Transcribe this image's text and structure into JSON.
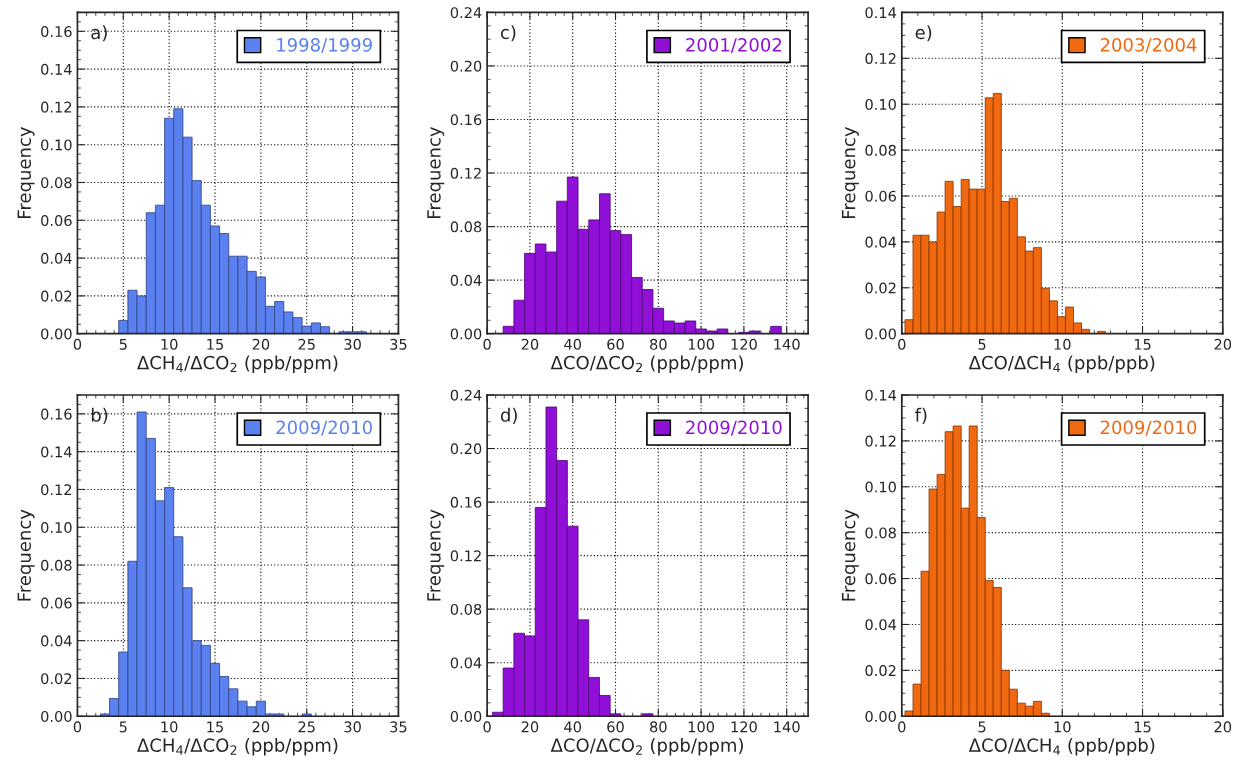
{
  "chart_data": [
    {
      "type": "histogram",
      "annotations": [
        "a)"
      ],
      "xlabel": "ΔCH$_{4}$/ΔCO$_{2}$ (ppb/ppm)",
      "ylabel": "Frequency",
      "grid": true,
      "legend": "top right",
      "bins": [
        4.5,
        5.5,
        6.5,
        7.5,
        8.5,
        9.5,
        10.5,
        11.5,
        12.5,
        13.5,
        14.5,
        15.5,
        16.5,
        17.5,
        18.5,
        19.5,
        20.5,
        21.5,
        22.5,
        23.5,
        24.5,
        25.5,
        26.5,
        27.5,
        28.5,
        29.5,
        30.5,
        31.5
      ],
      "series": [
        {
          "name": "1998/1999",
          "color": "#5b80f0",
          "values": [
            0.007,
            0.023,
            0.02,
            0.064,
            0.068,
            0.114,
            0.119,
            0.104,
            0.081,
            0.068,
            0.057,
            0.053,
            0.041,
            0.041,
            0.033,
            0.03,
            0.0145,
            0.017,
            0.0115,
            0.0085,
            0.004,
            0.0057,
            0.0037,
            0,
            0.001,
            0.001,
            0.001
          ]
        }
      ],
      "xlim": [
        0,
        35
      ],
      "xticks": [
        0,
        5,
        10,
        15,
        20,
        25,
        30,
        35
      ],
      "ylim": [
        0,
        0.17
      ],
      "yticks": [
        {
          "value": 0,
          "label": "0.00"
        },
        {
          "value": 0.02,
          "label": "0.02"
        },
        {
          "value": 0.04,
          "label": "0.04"
        },
        {
          "value": 0.06,
          "label": "0.06"
        },
        {
          "value": 0.08,
          "label": "0.08"
        },
        {
          "value": 0.1,
          "label": "0.10"
        },
        {
          "value": 0.12,
          "label": "0.12"
        },
        {
          "value": 0.14,
          "label": "0.14"
        },
        {
          "value": 0.16,
          "label": "0.16"
        }
      ]
    },
    {
      "type": "histogram",
      "annotations": [
        "c)"
      ],
      "xlabel": "ΔCO/ΔCO$_{2}$ (ppb/ppm)",
      "ylabel": "Frequency",
      "grid": true,
      "legend": "top right",
      "bins": [
        7.5,
        12.5,
        17.5,
        22.5,
        27.5,
        32.5,
        37.5,
        42.5,
        47.5,
        52.5,
        57.5,
        62.5,
        67.5,
        72.5,
        77.5,
        82.5,
        87.5,
        92.5,
        97.5,
        102.5,
        107.5,
        112.5,
        117.5,
        122.5,
        127.5,
        132.5,
        137.5
      ],
      "series": [
        {
          "name": "2001/2002",
          "color": "#9010d8",
          "values": [
            0.0055,
            0.025,
            0.06,
            0.067,
            0.061,
            0.099,
            0.117,
            0.078,
            0.085,
            0.1045,
            0.077,
            0.074,
            0.042,
            0.033,
            0.019,
            0.0095,
            0.008,
            0.0095,
            0.0035,
            0.002,
            0.0035,
            0,
            0.001,
            0.002,
            0,
            0.0055
          ]
        }
      ],
      "xlim": [
        0,
        150
      ],
      "xticks": [
        0,
        20,
        40,
        60,
        80,
        100,
        120,
        140
      ],
      "ylim": [
        0,
        0.24
      ],
      "yticks": [
        {
          "value": 0,
          "label": "0.00"
        },
        {
          "value": 0.04,
          "label": "0.04"
        },
        {
          "value": 0.08,
          "label": "0.08"
        },
        {
          "value": 0.12,
          "label": "0.12"
        },
        {
          "value": 0.16,
          "label": "0.16"
        },
        {
          "value": 0.2,
          "label": "0.20"
        },
        {
          "value": 0.24,
          "label": "0.24"
        }
      ]
    },
    {
      "type": "histogram",
      "annotations": [
        "e)"
      ],
      "xlabel": "ΔCO/ΔCH$_{4}$ (ppb/ppb)",
      "ylabel": "Frequency",
      "grid": true,
      "legend": "top right",
      "bins": [
        0.2,
        0.7,
        1.2,
        1.7,
        2.2,
        2.7,
        3.2,
        3.7,
        4.2,
        4.7,
        5.2,
        5.7,
        6.2,
        6.7,
        7.2,
        7.7,
        8.2,
        8.7,
        9.2,
        9.7,
        10.2,
        10.7,
        11.2,
        11.7,
        12.2,
        12.7
      ],
      "series": [
        {
          "name": "2003/2004",
          "color": "#f06810",
          "values": [
            0.0061,
            0.0429,
            0.0429,
            0.04,
            0.053,
            0.0664,
            0.0554,
            0.0672,
            0.063,
            0.063,
            0.1028,
            0.1047,
            0.0576,
            0.059,
            0.0422,
            0.036,
            0.0375,
            0.0198,
            0.0143,
            0.0074,
            0.0116,
            0.0047,
            0.0019,
            0,
            0.001
          ]
        }
      ],
      "xlim": [
        0,
        20
      ],
      "xticks": [
        0,
        5,
        10,
        15,
        20
      ],
      "ylim": [
        0,
        0.14
      ],
      "yticks": [
        {
          "value": 0,
          "label": "0.00"
        },
        {
          "value": 0.02,
          "label": "0.02"
        },
        {
          "value": 0.04,
          "label": "0.04"
        },
        {
          "value": 0.06,
          "label": "0.06"
        },
        {
          "value": 0.08,
          "label": "0.08"
        },
        {
          "value": 0.1,
          "label": "0.10"
        },
        {
          "value": 0.12,
          "label": "0.12"
        },
        {
          "value": 0.14,
          "label": "0.14"
        }
      ]
    },
    {
      "type": "histogram",
      "annotations": [
        "b)"
      ],
      "xlabel": "ΔCH$_{4}$/ΔCO$_{2}$ (ppb/ppm)",
      "ylabel": "Frequency",
      "grid": true,
      "legend": "top right",
      "bins": [
        2.5,
        3.5,
        4.5,
        5.5,
        6.5,
        7.5,
        8.5,
        9.5,
        10.5,
        11.5,
        12.5,
        13.5,
        14.5,
        15.5,
        16.5,
        17.5,
        18.5,
        19.5,
        20.5,
        21.5,
        22.5,
        23.5,
        24.5,
        25.5
      ],
      "series": [
        {
          "name": "2009/2010",
          "color": "#5b80f0",
          "values": [
            0.0012,
            0.0094,
            0.034,
            0.082,
            0.161,
            0.147,
            0.114,
            0.121,
            0.095,
            0.068,
            0.04,
            0.0375,
            0.028,
            0.021,
            0.0145,
            0.008,
            0.005,
            0.008,
            0.0012,
            0.0012,
            0,
            0,
            0.0012
          ]
        }
      ],
      "xlim": [
        0,
        35
      ],
      "xticks": [
        0,
        5,
        10,
        15,
        20,
        25,
        30,
        35
      ],
      "ylim": [
        0,
        0.17
      ],
      "yticks": [
        {
          "value": 0,
          "label": "0.00"
        },
        {
          "value": 0.02,
          "label": "0.02"
        },
        {
          "value": 0.04,
          "label": "0.04"
        },
        {
          "value": 0.06,
          "label": "0.06"
        },
        {
          "value": 0.08,
          "label": "0.08"
        },
        {
          "value": 0.1,
          "label": "0.10"
        },
        {
          "value": 0.12,
          "label": "0.12"
        },
        {
          "value": 0.14,
          "label": "0.14"
        },
        {
          "value": 0.16,
          "label": "0.16"
        }
      ]
    },
    {
      "type": "histogram",
      "annotations": [
        "d)"
      ],
      "xlabel": "ΔCO/ΔCO$_{2}$ (ppb/ppm)",
      "ylabel": "Frequency",
      "grid": true,
      "legend": "top right",
      "bins": [
        2.5,
        7.5,
        12.5,
        17.5,
        22.5,
        27.5,
        32.5,
        37.5,
        42.5,
        47.5,
        52.5,
        57.5,
        62.5,
        67.5,
        72.5,
        77.5
      ],
      "series": [
        {
          "name": "2009/2010",
          "color": "#9010d8",
          "values": [
            0.003,
            0.036,
            0.062,
            0.06,
            0.156,
            0.231,
            0.191,
            0.142,
            0.072,
            0.029,
            0.0155,
            0.0018,
            0,
            0,
            0.0018
          ]
        }
      ],
      "xlim": [
        0,
        150
      ],
      "xticks": [
        0,
        20,
        40,
        60,
        80,
        100,
        120,
        140
      ],
      "ylim": [
        0,
        0.24
      ],
      "yticks": [
        {
          "value": 0,
          "label": "0.00"
        },
        {
          "value": 0.04,
          "label": "0.04"
        },
        {
          "value": 0.08,
          "label": "0.08"
        },
        {
          "value": 0.12,
          "label": "0.12"
        },
        {
          "value": 0.16,
          "label": "0.16"
        },
        {
          "value": 0.2,
          "label": "0.20"
        },
        {
          "value": 0.24,
          "label": "0.24"
        }
      ]
    },
    {
      "type": "histogram",
      "annotations": [
        "f)"
      ],
      "xlabel": "ΔCO/ΔCH$_{4}$ (ppb/ppb)",
      "ylabel": "Frequency",
      "grid": true,
      "legend": "top right",
      "bins": [
        0.2,
        0.7,
        1.2,
        1.7,
        2.2,
        2.7,
        3.2,
        3.7,
        4.2,
        4.7,
        5.2,
        5.7,
        6.2,
        6.7,
        7.2,
        7.7,
        8.2,
        8.7,
        9.2
      ],
      "series": [
        {
          "name": "2009/2010",
          "color": "#f06810",
          "values": [
            0.0023,
            0.014,
            0.0632,
            0.099,
            0.1054,
            0.124,
            0.1265,
            0.0907,
            0.1265,
            0.0866,
            0.0592,
            0.0561,
            0.02,
            0.0118,
            0.0057,
            0.0044,
            0.0065,
            0.0013
          ]
        }
      ],
      "xlim": [
        0,
        20
      ],
      "xticks": [
        0,
        5,
        10,
        15,
        20
      ],
      "ylim": [
        0,
        0.14
      ],
      "yticks": [
        {
          "value": 0,
          "label": "0.00"
        },
        {
          "value": 0.02,
          "label": "0.02"
        },
        {
          "value": 0.04,
          "label": "0.04"
        },
        {
          "value": 0.06,
          "label": "0.06"
        },
        {
          "value": 0.08,
          "label": "0.08"
        },
        {
          "value": 0.1,
          "label": "0.10"
        },
        {
          "value": 0.12,
          "label": "0.12"
        },
        {
          "value": 0.14,
          "label": "0.14"
        }
      ]
    }
  ]
}
